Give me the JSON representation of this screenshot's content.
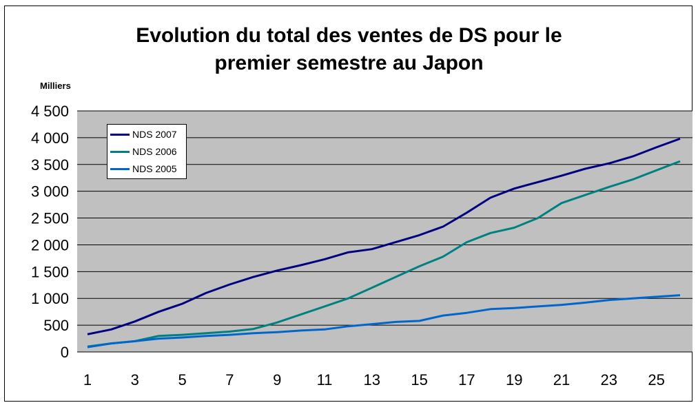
{
  "chart_data": {
    "type": "line",
    "title": "Evolution du total des ventes de DS pour le premier semestre au Japon",
    "title_lines": [
      "Evolution du total des ventes de DS pour le",
      "premier semestre au Japon"
    ],
    "ylabel": "Milliers",
    "xlabel": "",
    "x": [
      1,
      2,
      3,
      4,
      5,
      6,
      7,
      8,
      9,
      10,
      11,
      12,
      13,
      14,
      15,
      16,
      17,
      18,
      19,
      20,
      21,
      22,
      23,
      24,
      25,
      26
    ],
    "x_tick_labels": [
      "1",
      "3",
      "5",
      "7",
      "9",
      "11",
      "13",
      "15",
      "17",
      "19",
      "21",
      "23",
      "25"
    ],
    "y_tick_labels": [
      "0",
      "500",
      "1 000",
      "1 500",
      "2 000",
      "2 500",
      "3 000",
      "3 500",
      "4 000",
      "4 500"
    ],
    "ylim": [
      0,
      4500
    ],
    "grid": true,
    "legend_position": "top-left",
    "series": [
      {
        "name": "NDS 2007",
        "color": "#000080",
        "values": [
          330,
          420,
          570,
          750,
          900,
          1100,
          1260,
          1400,
          1520,
          1620,
          1730,
          1860,
          1920,
          2050,
          2180,
          2340,
          2600,
          2880,
          3050,
          3170,
          3290,
          3420,
          3520,
          3650,
          3820,
          3980
        ]
      },
      {
        "name": "NDS 2006",
        "color": "#008080",
        "values": [
          100,
          160,
          200,
          300,
          320,
          350,
          380,
          430,
          550,
          700,
          850,
          1000,
          1200,
          1400,
          1600,
          1780,
          2050,
          2220,
          2320,
          2500,
          2780,
          2930,
          3080,
          3220,
          3390,
          3560
        ]
      },
      {
        "name": "NDS 2005",
        "color": "#0066CC",
        "values": [
          90,
          160,
          200,
          250,
          270,
          300,
          320,
          350,
          370,
          400,
          420,
          480,
          520,
          560,
          580,
          680,
          730,
          800,
          820,
          850,
          880,
          920,
          970,
          1000,
          1030,
          1060
        ]
      }
    ]
  }
}
